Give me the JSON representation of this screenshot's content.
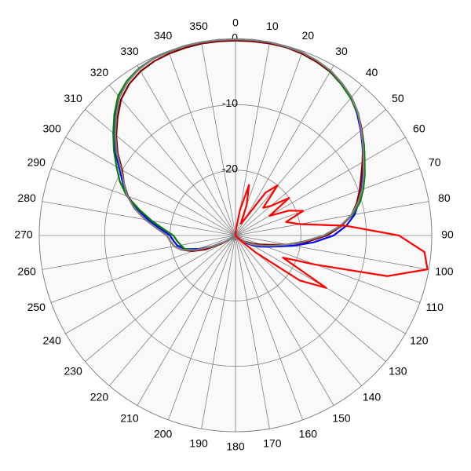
{
  "chart_data": {
    "type": "polar",
    "x": [
      0,
      5,
      10,
      15,
      20,
      25,
      30,
      35,
      40,
      45,
      50,
      55,
      60,
      65,
      70,
      75,
      80,
      85,
      90,
      95,
      100,
      105,
      110,
      115,
      120,
      125,
      130,
      135,
      140,
      145,
      150,
      155,
      160,
      165,
      170,
      175,
      180,
      185,
      190,
      195,
      200,
      205,
      210,
      215,
      220,
      225,
      230,
      235,
      240,
      245,
      250,
      255,
      260,
      265,
      270,
      275,
      280,
      285,
      290,
      295,
      300,
      305,
      310,
      315,
      320,
      325,
      330,
      335,
      340,
      345,
      350,
      355
    ],
    "series": [
      {
        "color": "#0000ff",
        "values": [
          0,
          0,
          0,
          -0.1,
          -0.3,
          -0.6,
          -1,
          -1.7,
          -2.5,
          -3.7,
          -5,
          -6.3,
          -7.5,
          -8.5,
          -9.5,
          -10.5,
          -11.5,
          -13,
          -15,
          -18,
          -21,
          -23.5,
          -25,
          -26,
          -27,
          -28,
          -29,
          -29.5,
          -29.5,
          -29.5,
          -29.5,
          -29.5,
          -29.5,
          -29.5,
          -29.5,
          -29.5,
          -29.5,
          -29.5,
          -29.5,
          -29.5,
          -29.5,
          -29.5,
          -29.5,
          -29.5,
          -29.5,
          -29.5,
          -29.5,
          -29,
          -28,
          -26,
          -24,
          -22,
          -21,
          -20.5,
          -20,
          -18.5,
          -16.5,
          -14.5,
          -12.5,
          -11,
          -9.5,
          -7.5,
          -5.8,
          -4,
          -2.2,
          -1.2,
          -0.5,
          -0.2,
          -0.1,
          0,
          0,
          0
        ]
      },
      {
        "color": "#008000",
        "values": [
          0,
          0,
          -0.1,
          -0.2,
          -0.4,
          -0.7,
          -1.1,
          -1.8,
          -2.6,
          -3.6,
          -4.8,
          -6,
          -7.2,
          -8.2,
          -9.2,
          -10.3,
          -11.8,
          -14,
          -16.5,
          -19.5,
          -22,
          -24,
          -25.5,
          -26.5,
          -27.5,
          -28.5,
          -29,
          -29.5,
          -29.5,
          -29.5,
          -29.5,
          -29.5,
          -29.5,
          -29.5,
          -29.5,
          -29.5,
          -29.5,
          -29.5,
          -29.5,
          -29.5,
          -29.5,
          -29.5,
          -29.5,
          -29.5,
          -29.5,
          -29.5,
          -29.5,
          -29,
          -27.5,
          -25.5,
          -23.5,
          -22,
          -21.5,
          -21,
          -20.5,
          -19,
          -17,
          -14.8,
          -12.3,
          -10.5,
          -9,
          -7.3,
          -5.6,
          -3.8,
          -2.1,
          -1.1,
          -0.5,
          -0.2,
          -0.1,
          0,
          0,
          0
        ]
      },
      {
        "color": "#800000",
        "values": [
          -0.2,
          -0.2,
          -0.2,
          -0.2,
          -0.4,
          -0.7,
          -1,
          -1.6,
          -2.4,
          -3.5,
          -4.8,
          -6.2,
          -7.6,
          -8.8,
          -9.8,
          -10.8,
          -12,
          -13.8,
          -16,
          -19,
          -22,
          -24.5,
          -26,
          -27,
          -28,
          -28.5,
          -29,
          -29.5,
          -29.5,
          -29.5,
          -29.5,
          -29.5,
          -29.5,
          -29.5,
          -29.5,
          -29.5,
          -29.5,
          -29.5,
          -29.5,
          -29.5,
          -29.5,
          -29.5,
          -29.5,
          -29.5,
          -29.5,
          -29.5,
          -29.5,
          -29,
          -27.5,
          -25,
          -23,
          -21.5,
          -20.5,
          -20,
          -19.5,
          -18,
          -16,
          -14,
          -12.5,
          -11.2,
          -10,
          -8,
          -6.2,
          -4.5,
          -2.8,
          -1.7,
          -1,
          -0.6,
          -0.4,
          -0.3,
          -0.2,
          -0.2
        ]
      },
      {
        "color": "#808080",
        "values": [
          0,
          0,
          0,
          -0.1,
          -0.2,
          -0.5,
          -0.9,
          -1.6,
          -2.4,
          -3.5,
          -4.9,
          -6.2,
          -7.4,
          -8.4,
          -9.4,
          -10.6,
          -12,
          -14,
          -16.5,
          -19.5,
          -22,
          -24,
          -25.5,
          -26.5,
          -27.5,
          -28.5,
          -29,
          -29.5,
          -29.5,
          -29.5,
          -29.5,
          -29.5,
          -29.5,
          -29.5,
          -29.5,
          -29.5,
          -29.5,
          -29.5,
          -29.5,
          -29.5,
          -29.5,
          -29.5,
          -29.5,
          -29.5,
          -29.5,
          -29.5,
          -29.5,
          -29,
          -28,
          -26,
          -23.5,
          -21.5,
          -20.5,
          -20,
          -19.5,
          -18,
          -16,
          -14,
          -12.4,
          -11.2,
          -9.8,
          -7.8,
          -6,
          -4.2,
          -2.4,
          -1.3,
          -0.6,
          -0.2,
          -0.1,
          0,
          0,
          0
        ]
      },
      {
        "color": "#ff0000",
        "values": [
          -30,
          -29,
          -26,
          -22,
          -25,
          -28,
          -27,
          -22,
          -20,
          -24,
          -23,
          -20,
          -24,
          -21,
          -19,
          -22,
          -20,
          -13,
          -5,
          -1,
          -0.2,
          -6,
          -17,
          -22,
          -14,
          -18,
          -26,
          -29,
          -30,
          -30,
          -30,
          -30,
          -30,
          -30,
          -30,
          -30,
          -30,
          -30,
          -30,
          -30,
          -30,
          -30,
          -30,
          -30,
          -30,
          -30,
          -30,
          -30,
          -30,
          -30,
          -30,
          -30,
          -30,
          -30,
          -30,
          -30,
          -30,
          -30,
          -30,
          -30,
          -30,
          -30,
          -30,
          -30,
          -30,
          -30,
          -30,
          -30,
          -30,
          -30,
          -30,
          -30
        ]
      }
    ],
    "rlim": [
      -30,
      0
    ],
    "rticks": [
      -20,
      -10,
      0
    ],
    "angleticks": [
      0,
      10,
      20,
      30,
      40,
      50,
      60,
      70,
      80,
      90,
      100,
      110,
      120,
      130,
      140,
      150,
      160,
      170,
      180,
      190,
      200,
      210,
      220,
      230,
      240,
      250,
      260,
      270,
      280,
      290,
      300,
      310,
      320,
      330,
      340,
      350
    ]
  }
}
